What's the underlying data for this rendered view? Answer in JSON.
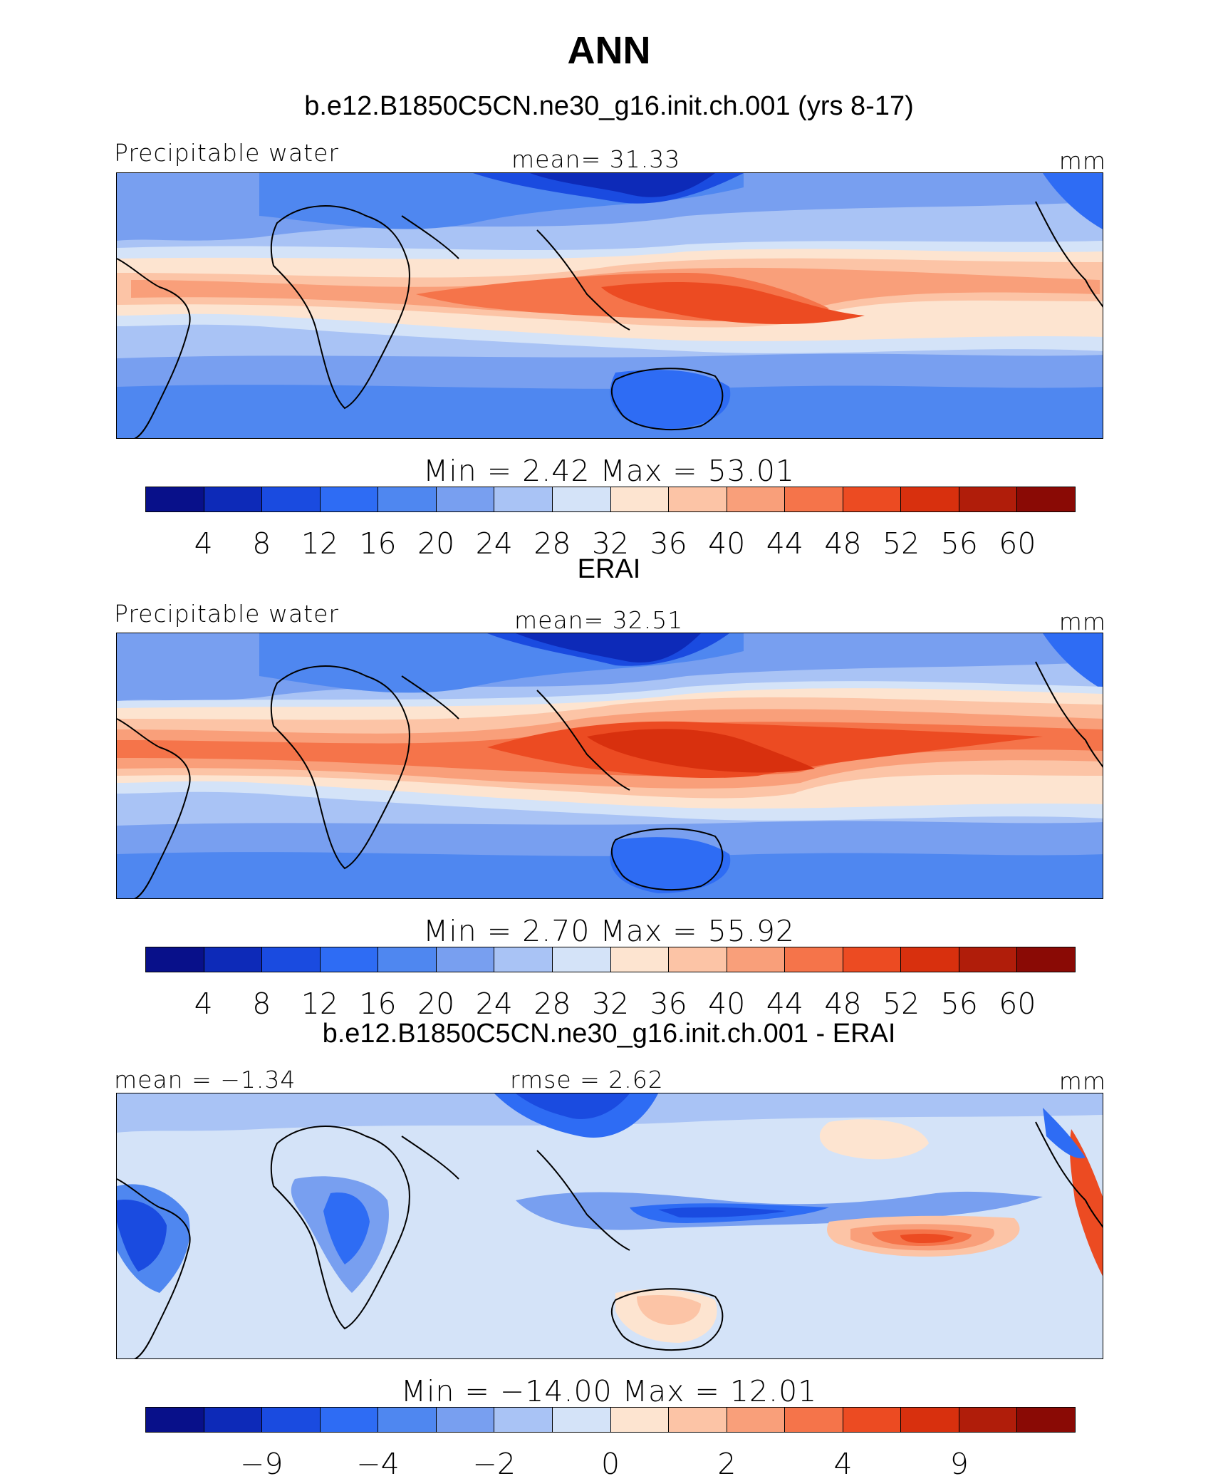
{
  "figure": {
    "season": "ANN"
  },
  "colors": [
    "#08108a",
    "#0d2ab8",
    "#1a4be0",
    "#2e6cf4",
    "#4f87f0",
    "#789ff0",
    "#a9c3f5",
    "#d4e3f8",
    "#fde4d0",
    "#fcc4a6",
    "#f99f7a",
    "#f5744a",
    "#ec4b22",
    "#d8300e",
    "#b01d0a",
    "#8a0a05"
  ],
  "panels": [
    {
      "header": "b.e12.B1850C5CN.ne30_g16.init.ch.001 (yrs 8-17)",
      "left_label": "Precipitable water",
      "center_label": "mean=   31.33",
      "right_label": "mm",
      "min_max": "Min  =     2.42  Max  =    53.01",
      "ticks": [
        "4",
        "8",
        "12",
        "16",
        "20",
        "24",
        "28",
        "32",
        "36",
        "40",
        "44",
        "48",
        "52",
        "56",
        "60"
      ]
    },
    {
      "header": "ERAI",
      "left_label": "Precipitable water",
      "center_label": "mean=   32.51",
      "right_label": "mm",
      "min_max": "Min  =     2.70  Max  =    55.92",
      "ticks": [
        "4",
        "8",
        "12",
        "16",
        "20",
        "24",
        "28",
        "32",
        "36",
        "40",
        "44",
        "48",
        "52",
        "56",
        "60"
      ]
    },
    {
      "header": "b.e12.B1850C5CN.ne30_g16.init.ch.001 - ERAI",
      "left_label": "mean  =   −1.34",
      "center_label": "rmse  =     2.62",
      "right_label": "mm",
      "min_max": "Min  =  −14.00  Max  =    12.01",
      "ticks": [
        "−9",
        "−4",
        "−2",
        "0",
        "2",
        "4",
        "9"
      ]
    }
  ]
}
